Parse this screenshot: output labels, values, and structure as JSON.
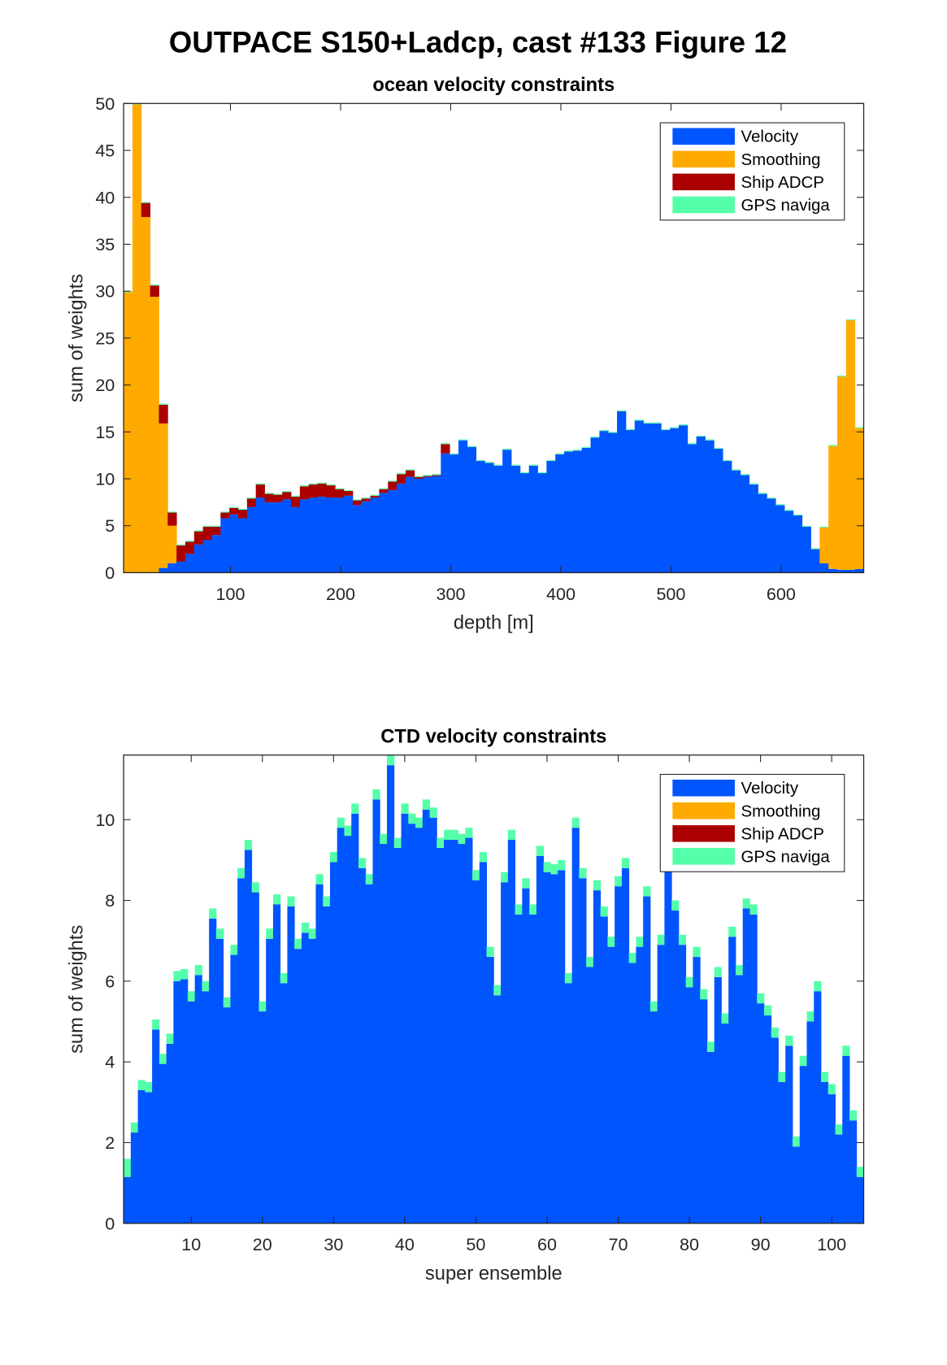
{
  "title": "OUTPACE S150+Ladcp, cast #133  Figure 12",
  "chart_data": [
    {
      "type": "bar",
      "stacked": true,
      "title": "ocean velocity constraints",
      "xlabel": "depth [m]",
      "ylabel": "sum of weights",
      "x": [
        7,
        15,
        23,
        31,
        39,
        47,
        55,
        63,
        71,
        79,
        87,
        95,
        103,
        111,
        119,
        127,
        135,
        143,
        151,
        159,
        167,
        175,
        183,
        191,
        199,
        207,
        215,
        223,
        231,
        239,
        247,
        255,
        263,
        271,
        279,
        287,
        295,
        303,
        311,
        319,
        327,
        335,
        343,
        351,
        359,
        367,
        375,
        383,
        391,
        399,
        407,
        415,
        423,
        431,
        439,
        447,
        455,
        463,
        471,
        479,
        487,
        495,
        503,
        511,
        519,
        527,
        535,
        543,
        551,
        559,
        567,
        575,
        583,
        591,
        599,
        607,
        615,
        623,
        631,
        639,
        647,
        655,
        663,
        671
      ],
      "xlim": [
        3,
        675
      ],
      "xticks": [
        100,
        200,
        300,
        400,
        500,
        600
      ],
      "ylim": [
        0,
        50
      ],
      "yticks": [
        0,
        5,
        10,
        15,
        20,
        25,
        30,
        35,
        40,
        45,
        50
      ],
      "legend": "upper right",
      "series": [
        {
          "name": "Velocity",
          "color": "#0055ff",
          "values": [
            0,
            0,
            0,
            0,
            0.5,
            1,
            1.2,
            2,
            3,
            3.5,
            4,
            5.8,
            6.2,
            5.8,
            7,
            8,
            7.5,
            7.5,
            7.8,
            7,
            7.8,
            8,
            8.1,
            8,
            8,
            8.2,
            7.2,
            7.6,
            8,
            8.5,
            8.8,
            9.5,
            10.2,
            10,
            10.2,
            10.3,
            12.7,
            12.6,
            14.1,
            13.4,
            11.9,
            11.7,
            11.4,
            13.1,
            11.4,
            10.6,
            11.4,
            10.6,
            11.9,
            12.6,
            12.9,
            13,
            13.3,
            14.4,
            15.1,
            14.9,
            17.2,
            15.2,
            16.2,
            15.9,
            15.9,
            15.2,
            15.4,
            15.7,
            13.7,
            14.5,
            14.1,
            13.2,
            11.9,
            10.9,
            10.4,
            9.4,
            8.4,
            7.9,
            7.2,
            6.6,
            6.1,
            4.9,
            2.5,
            1,
            0.4,
            0.3,
            0.3,
            0.4
          ]
        },
        {
          "name": "Smoothing",
          "color": "#ffaa00",
          "values": [
            29.9,
            49.9,
            37.9,
            29.4,
            15.4,
            4,
            0,
            0,
            0,
            0,
            0,
            0,
            0,
            0,
            0,
            0,
            0,
            0,
            0,
            0,
            0,
            0,
            0,
            0,
            0,
            0,
            0,
            0,
            0,
            0,
            0,
            0,
            0,
            0,
            0,
            0,
            0,
            0,
            0,
            0,
            0,
            0,
            0,
            0,
            0,
            0,
            0,
            0,
            0,
            0,
            0,
            0,
            0,
            0,
            0,
            0,
            0,
            0,
            0,
            0,
            0,
            0,
            0,
            0,
            0,
            0,
            0,
            0,
            0,
            0,
            0,
            0,
            0,
            0,
            0,
            0,
            0,
            0,
            0,
            3.8,
            13.1,
            20.6,
            26.6,
            15
          ]
        },
        {
          "name": "Ship ADCP",
          "color": "#aa0000",
          "values": [
            0,
            0,
            1.5,
            1.2,
            2,
            1.4,
            1.7,
            1.3,
            1.4,
            1.4,
            0.9,
            0.6,
            0.7,
            0.9,
            0.9,
            1.4,
            0.9,
            0.8,
            0.8,
            1.1,
            1.4,
            1.4,
            1.4,
            1.3,
            0.9,
            0.5,
            0.5,
            0.3,
            0.2,
            0.4,
            0.9,
            1,
            0.7,
            0.2,
            0.1,
            0.1,
            1,
            0,
            0,
            0,
            0,
            0,
            0,
            0,
            0,
            0,
            0,
            0,
            0,
            0,
            0,
            0,
            0,
            0,
            0,
            0,
            0,
            0,
            0,
            0,
            0,
            0,
            0,
            0,
            0,
            0,
            0,
            0,
            0,
            0,
            0,
            0,
            0,
            0,
            0,
            0,
            0,
            0,
            0,
            0,
            0,
            0,
            0,
            0
          ]
        },
        {
          "name": "GPS naviga",
          "color": "#55ffaa",
          "values": [
            0.1,
            0.1,
            0.1,
            0.1,
            0.1,
            0.1,
            0.1,
            0.1,
            0.1,
            0.1,
            0.1,
            0.1,
            0.1,
            0.1,
            0.1,
            0.1,
            0.1,
            0.1,
            0.1,
            0.1,
            0.1,
            0.1,
            0.1,
            0.1,
            0.1,
            0.1,
            0.1,
            0.1,
            0.1,
            0.1,
            0.1,
            0.1,
            0.1,
            0.1,
            0.1,
            0.1,
            0.1,
            0.1,
            0.1,
            0.1,
            0.1,
            0.1,
            0.1,
            0.1,
            0.1,
            0.1,
            0.1,
            0.1,
            0.1,
            0.1,
            0.1,
            0.1,
            0.1,
            0.1,
            0.1,
            0.1,
            0.1,
            0.1,
            0.1,
            0.1,
            0.1,
            0.1,
            0.1,
            0.1,
            0.1,
            0.1,
            0.1,
            0.1,
            0.1,
            0.1,
            0.1,
            0.1,
            0.1,
            0.1,
            0.1,
            0.1,
            0.1,
            0.1,
            0.1,
            0.1,
            0.1,
            0.1,
            0.1,
            0.1
          ]
        }
      ]
    },
    {
      "type": "bar",
      "stacked": true,
      "title": "CTD velocity constraints",
      "xlabel": "super ensemble",
      "ylabel": "sum of weights",
      "x": [
        1,
        2,
        3,
        4,
        5,
        6,
        7,
        8,
        9,
        10,
        11,
        12,
        13,
        14,
        15,
        16,
        17,
        18,
        19,
        20,
        21,
        22,
        23,
        24,
        25,
        26,
        27,
        28,
        29,
        30,
        31,
        32,
        33,
        34,
        35,
        36,
        37,
        38,
        39,
        40,
        41,
        42,
        43,
        44,
        45,
        46,
        47,
        48,
        49,
        50,
        51,
        52,
        53,
        54,
        55,
        56,
        57,
        58,
        59,
        60,
        61,
        62,
        63,
        64,
        65,
        66,
        67,
        68,
        69,
        70,
        71,
        72,
        73,
        74,
        75,
        76,
        77,
        78,
        79,
        80,
        81,
        82,
        83,
        84,
        85,
        86,
        87,
        88,
        89,
        90,
        91,
        92,
        93,
        94,
        95,
        96,
        97,
        98,
        99,
        100,
        101,
        102,
        103,
        104
      ],
      "xlim": [
        0.5,
        104.5
      ],
      "xticks": [
        10,
        20,
        30,
        40,
        50,
        60,
        70,
        80,
        90,
        100
      ],
      "ylim": [
        0,
        11.6
      ],
      "yticks": [
        0,
        2,
        4,
        6,
        8,
        10
      ],
      "legend": "upper right",
      "series": [
        {
          "name": "Velocity",
          "color": "#0055ff",
          "values": [
            1.15,
            2.25,
            3.3,
            3.25,
            4.8,
            3.95,
            4.45,
            6.0,
            6.05,
            5.5,
            6.15,
            5.75,
            7.55,
            7.05,
            5.35,
            6.65,
            8.55,
            9.25,
            8.2,
            5.25,
            7.05,
            7.9,
            5.95,
            7.85,
            6.8,
            7.2,
            7.05,
            8.4,
            7.85,
            8.95,
            9.8,
            9.6,
            10.15,
            8.8,
            8.4,
            10.5,
            9.4,
            11.35,
            9.3,
            10.15,
            9.9,
            9.8,
            10.25,
            10.05,
            9.3,
            9.5,
            9.5,
            9.4,
            9.55,
            8.5,
            8.95,
            6.6,
            5.65,
            8.45,
            9.5,
            7.65,
            8.3,
            7.65,
            9.1,
            8.7,
            8.65,
            8.75,
            5.95,
            9.8,
            8.55,
            6.35,
            8.25,
            7.6,
            6.85,
            8.35,
            8.8,
            6.45,
            6.85,
            8.1,
            5.25,
            6.9,
            8.9,
            7.75,
            6.9,
            5.85,
            6.6,
            5.55,
            4.25,
            6.1,
            4.95,
            7.1,
            6.15,
            7.8,
            7.65,
            5.45,
            5.15,
            4.6,
            3.5,
            4.4,
            1.9,
            3.9,
            5.0,
            5.75,
            3.5,
            3.2,
            2.2,
            4.15,
            2.55,
            1.15
          ]
        },
        {
          "name": "Smoothing",
          "color": "#ffaa00",
          "values": [
            0,
            0,
            0,
            0,
            0,
            0,
            0,
            0,
            0,
            0,
            0,
            0,
            0,
            0,
            0,
            0,
            0,
            0,
            0,
            0,
            0,
            0,
            0,
            0,
            0,
            0,
            0,
            0,
            0,
            0,
            0,
            0,
            0,
            0,
            0,
            0,
            0,
            0,
            0,
            0,
            0,
            0,
            0,
            0,
            0,
            0,
            0,
            0,
            0,
            0,
            0,
            0,
            0,
            0,
            0,
            0,
            0,
            0,
            0,
            0,
            0,
            0,
            0,
            0,
            0,
            0,
            0,
            0,
            0,
            0,
            0,
            0,
            0,
            0,
            0,
            0,
            0,
            0,
            0,
            0,
            0,
            0,
            0,
            0,
            0,
            0,
            0,
            0,
            0,
            0,
            0,
            0,
            0,
            0,
            0,
            0,
            0,
            0,
            0,
            0,
            0,
            0,
            0,
            0
          ]
        },
        {
          "name": "Ship ADCP",
          "color": "#aa0000",
          "values": [
            0,
            0,
            0,
            0,
            0,
            0,
            0,
            0,
            0,
            0,
            0,
            0,
            0,
            0,
            0,
            0,
            0,
            0,
            0,
            0,
            0,
            0,
            0,
            0,
            0,
            0,
            0,
            0,
            0,
            0,
            0,
            0,
            0,
            0,
            0,
            0,
            0,
            0,
            0,
            0,
            0,
            0,
            0,
            0,
            0,
            0,
            0,
            0,
            0,
            0,
            0,
            0,
            0,
            0,
            0,
            0,
            0,
            0,
            0,
            0,
            0,
            0,
            0,
            0,
            0,
            0,
            0,
            0,
            0,
            0,
            0,
            0,
            0,
            0,
            0,
            0,
            0,
            0,
            0,
            0,
            0,
            0,
            0,
            0,
            0,
            0,
            0,
            0,
            0,
            0,
            0,
            0,
            0,
            0,
            0,
            0,
            0,
            0,
            0,
            0,
            0,
            0,
            0,
            0
          ]
        },
        {
          "name": "GPS naviga",
          "color": "#55ffaa",
          "values": [
            0.45,
            0.25,
            0.25,
            0.25,
            0.25,
            0.25,
            0.25,
            0.25,
            0.25,
            0.25,
            0.25,
            0.25,
            0.25,
            0.25,
            0.25,
            0.25,
            0.25,
            0.25,
            0.25,
            0.25,
            0.25,
            0.25,
            0.25,
            0.25,
            0.25,
            0.25,
            0.25,
            0.25,
            0.25,
            0.25,
            0.25,
            0.25,
            0.25,
            0.25,
            0.25,
            0.25,
            0.25,
            0.25,
            0.25,
            0.25,
            0.25,
            0.25,
            0.25,
            0.25,
            0.25,
            0.25,
            0.25,
            0.25,
            0.25,
            0.25,
            0.25,
            0.25,
            0.25,
            0.25,
            0.25,
            0.25,
            0.25,
            0.25,
            0.25,
            0.25,
            0.25,
            0.25,
            0.25,
            0.25,
            0.25,
            0.25,
            0.25,
            0.25,
            0.25,
            0.25,
            0.25,
            0.25,
            0.25,
            0.25,
            0.25,
            0.25,
            0.25,
            0.25,
            0.25,
            0.25,
            0.25,
            0.25,
            0.25,
            0.25,
            0.25,
            0.25,
            0.25,
            0.25,
            0.25,
            0.25,
            0.25,
            0.25,
            0.25,
            0.25,
            0.25,
            0.25,
            0.25,
            0.25,
            0.25,
            0.25,
            0.25,
            0.25,
            0.25,
            0.25
          ]
        }
      ]
    }
  ]
}
